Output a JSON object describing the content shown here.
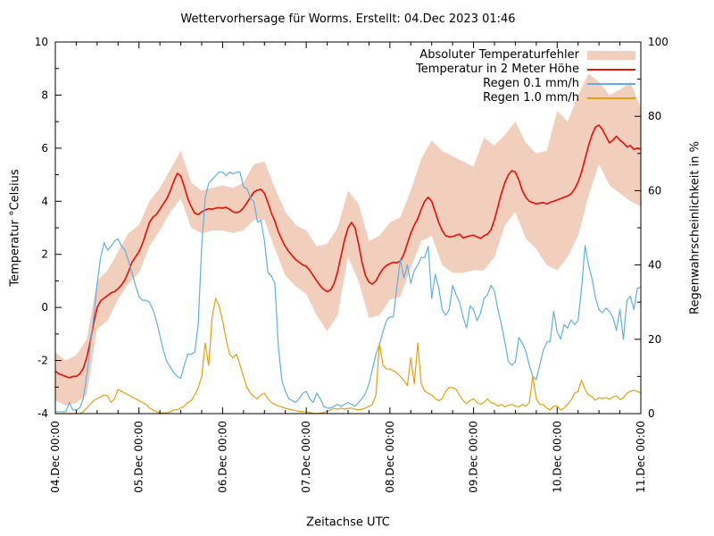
{
  "title": "Wettervorhersage für Worms. Erstellt: 04.Dec 2023 01:46",
  "axes": {
    "x_label": "Zeitachse UTC",
    "y_left_label": "Temperatur °Celsius",
    "y_right_label": "Regenwahrscheinlichkeit in %",
    "y_left_ticks": [
      10,
      8,
      6,
      4,
      2,
      0,
      -2,
      -4
    ],
    "y_left_minor_ticks": [
      9,
      7,
      5,
      3,
      1,
      -1,
      -3
    ],
    "y_right_ticks": [
      100,
      80,
      60,
      40,
      20,
      0
    ],
    "y_right_minor_ticks": [
      90,
      70,
      50,
      30,
      10
    ],
    "x_tick_labels": [
      "04.Dec 00:00",
      "05.Dec 00:00",
      "06.Dec 00:00",
      "07.Dec 00:00",
      "08.Dec 00:00",
      "09.Dec 00:00",
      "10.Dec 00:00",
      "11.Dec 00:00"
    ]
  },
  "chart_data": {
    "type": "line",
    "title": "Wettervorhersage für Worms. Erstellt: 04.Dec 2023 01:46",
    "xlabel": "Zeitachse UTC",
    "x_unit": "hours since 04.Dec 2023 00:00 UTC",
    "x_range_hours": [
      0,
      168
    ],
    "x_tick_labels": [
      "04.Dec 00:00",
      "05.Dec 00:00",
      "06.Dec 00:00",
      "07.Dec 00:00",
      "08.Dec 00:00",
      "09.Dec 00:00",
      "10.Dec 00:00",
      "11.Dec 00:00"
    ],
    "y_left": {
      "label": "Temperatur °Celsius",
      "range": [
        -4,
        10
      ]
    },
    "y_right": {
      "label": "Regenwahrscheinlichkeit in %",
      "range": [
        0,
        100
      ]
    },
    "grid": false,
    "legend_position": "top-right-inside",
    "series": [
      {
        "name": "Absoluter Temperaturfehler",
        "type": "band",
        "axis": "left",
        "color": "#f2cfbd",
        "step_hours": 3,
        "upper": [
          -1.7,
          -2.0,
          -1.8,
          -1.2,
          1.0,
          1.4,
          2.1,
          2.8,
          3.1,
          4.0,
          4.5,
          5.2,
          5.9,
          4.7,
          4.4,
          4.5,
          4.6,
          4.5,
          4.7,
          5.4,
          5.5,
          4.5,
          3.6,
          3.1,
          2.9,
          2.3,
          2.4,
          3.0,
          4.4,
          3.9,
          2.5,
          2.7,
          3.2,
          3.4,
          4.4,
          5.6,
          6.3,
          5.9,
          5.7,
          5.5,
          5.3,
          6.4,
          6.1,
          6.5,
          7.0,
          6.2,
          5.8,
          5.9,
          7.4,
          7.0,
          8.0,
          8.8,
          8.5,
          8.0,
          8.2,
          8.5,
          7.5
        ],
        "lower": [
          -3.5,
          -3.7,
          -3.6,
          -3.3,
          -0.8,
          -0.5,
          0.3,
          0.9,
          1.3,
          2.3,
          2.9,
          3.6,
          4.1,
          3.0,
          2.8,
          2.9,
          2.9,
          2.8,
          2.9,
          3.3,
          3.3,
          2.2,
          1.2,
          0.8,
          0.5,
          -0.3,
          -0.9,
          -0.3,
          1.9,
          1.0,
          -0.4,
          -0.3,
          0.3,
          0.4,
          1.5,
          2.5,
          2.7,
          1.6,
          1.3,
          1.3,
          1.4,
          1.4,
          1.9,
          3.1,
          3.6,
          2.6,
          2.2,
          1.6,
          1.4,
          1.9,
          2.7,
          4.2,
          5.4,
          4.6,
          4.3,
          4.0,
          3.8
        ]
      },
      {
        "name": "Temperatur in 2 Meter Höhe",
        "type": "line",
        "axis": "left",
        "unit": "°C",
        "color": "#e8150d",
        "step_hours": 1,
        "values": [
          -2.4,
          -2.5,
          -2.55,
          -2.6,
          -2.65,
          -2.6,
          -2.6,
          -2.5,
          -2.3,
          -1.9,
          -1.3,
          -0.6,
          0,
          0.25,
          0.35,
          0.45,
          0.55,
          0.6,
          0.7,
          0.85,
          1.05,
          1.35,
          1.7,
          1.9,
          2.1,
          2.4,
          2.8,
          3.2,
          3.4,
          3.5,
          3.7,
          3.9,
          4.1,
          4.4,
          4.75,
          5.05,
          4.95,
          4.55,
          4.1,
          3.8,
          3.55,
          3.5,
          3.6,
          3.67,
          3.72,
          3.7,
          3.74,
          3.76,
          3.74,
          3.77,
          3.7,
          3.6,
          3.57,
          3.62,
          3.75,
          3.95,
          4.15,
          4.35,
          4.42,
          4.45,
          4.3,
          3.95,
          3.55,
          3.25,
          2.85,
          2.55,
          2.3,
          2.1,
          1.95,
          1.8,
          1.7,
          1.6,
          1.55,
          1.4,
          1.2,
          1,
          0.82,
          0.68,
          0.6,
          0.66,
          0.9,
          1.35,
          1.95,
          2.55,
          3,
          3.2,
          3,
          2.4,
          1.7,
          1.2,
          0.95,
          0.88,
          1,
          1.25,
          1.45,
          1.58,
          1.65,
          1.7,
          1.68,
          1.75,
          2,
          2.4,
          2.8,
          3.1,
          3.35,
          3.7,
          4,
          4.15,
          4,
          3.6,
          3.2,
          2.9,
          2.7,
          2.66,
          2.67,
          2.72,
          2.76,
          2.62,
          2.66,
          2.7,
          2.72,
          2.66,
          2.6,
          2.7,
          2.76,
          2.92,
          3.3,
          3.8,
          4.3,
          4.7,
          5,
          5.15,
          5.1,
          4.8,
          4.4,
          4.15,
          4,
          3.95,
          3.9,
          3.93,
          3.95,
          3.9,
          3.96,
          4,
          4.05,
          4.1,
          4.15,
          4.2,
          4.28,
          4.45,
          4.72,
          5.1,
          5.6,
          6.1,
          6.5,
          6.8,
          6.87,
          6.7,
          6.45,
          6.2,
          6.3,
          6.45,
          6.3,
          6.2,
          6.05,
          6.1,
          5.95,
          6,
          5.97
        ]
      },
      {
        "name": "Regen 0.1 mm/h",
        "type": "line",
        "axis": "right",
        "unit": "%",
        "color": "#5fb0e0",
        "step_hours": 1,
        "values": [
          0.5,
          0.5,
          0.5,
          0.5,
          3,
          1,
          1,
          1.5,
          4,
          10,
          18,
          26,
          35,
          42,
          46,
          44,
          45,
          46.5,
          47,
          45,
          44,
          41,
          38,
          34.5,
          31.5,
          30.5,
          30.5,
          30,
          28,
          25,
          21,
          17,
          14,
          12.5,
          11,
          10,
          9.5,
          13,
          16,
          16,
          16.5,
          24,
          45,
          58,
          62,
          63,
          64,
          65,
          65,
          64,
          65,
          64.5,
          65,
          65,
          61,
          60.5,
          58,
          57,
          51.5,
          52,
          46.5,
          38,
          37,
          35,
          18,
          9,
          6,
          4,
          3.5,
          3,
          4,
          5.5,
          6,
          4,
          3,
          5.5,
          4,
          2,
          1.5,
          1.5,
          2,
          2.5,
          2,
          2.5,
          3,
          2.5,
          2,
          3,
          4,
          5.5,
          8,
          12,
          16,
          18.5,
          22,
          25,
          26,
          26,
          34,
          41.5,
          36.5,
          40,
          35,
          38.5,
          40,
          42,
          42,
          45,
          31,
          37.5,
          34,
          28,
          26.5,
          28,
          34.5,
          32,
          30,
          26,
          23,
          29,
          28,
          25,
          27,
          31,
          32,
          34.5,
          33,
          28,
          24,
          19.2,
          14,
          13,
          14,
          20.5,
          19,
          16.8,
          13,
          10,
          9.1,
          13,
          17,
          19.2,
          19.5,
          27.6,
          22,
          20,
          24,
          23,
          25.2,
          24,
          25,
          33.7,
          45.2,
          40,
          36.3,
          31.2,
          28,
          27.2,
          28.4,
          27.5,
          26,
          22.4,
          28,
          20,
          30.4,
          31.6,
          28,
          33.7,
          34
        ]
      },
      {
        "name": "Regen 1.0 mm/h",
        "type": "line",
        "axis": "right",
        "unit": "%",
        "color": "#e5a00e",
        "step_hours": 1,
        "values": [
          0,
          0,
          0,
          0,
          0,
          0,
          0,
          0,
          0.5,
          1.5,
          2.5,
          3.5,
          4,
          4.5,
          5,
          4.8,
          3,
          4,
          6.5,
          6,
          5.5,
          5,
          4.5,
          4,
          3.5,
          3,
          2.5,
          1.5,
          1,
          0.5,
          0.2,
          0.2,
          0.2,
          0.5,
          1,
          1,
          1.5,
          2,
          3,
          3.5,
          5,
          7,
          10,
          19,
          13,
          26,
          31,
          29,
          25,
          20,
          16,
          15,
          16,
          13,
          10,
          7,
          5.5,
          4.5,
          4,
          5,
          5.5,
          4,
          3,
          2.5,
          2,
          1.8,
          1.5,
          1.2,
          1,
          0.8,
          0.6,
          0.5,
          0.5,
          0.3,
          0.1,
          0,
          0.1,
          0.3,
          0.5,
          1,
          1.4,
          1.2,
          1.5,
          1.2,
          1.4,
          1.5,
          1.2,
          1,
          1.2,
          1.5,
          2,
          2.5,
          5,
          19,
          13,
          12,
          12,
          11.5,
          11,
          10,
          9,
          7.5,
          15,
          8,
          19,
          8,
          6,
          5.5,
          5,
          4,
          3.5,
          4,
          6,
          7,
          7,
          6.5,
          5,
          3.5,
          2.7,
          3.5,
          4,
          3,
          2.5,
          3,
          4,
          3,
          2.7,
          2,
          2.5,
          1.8,
          2.2,
          2.5,
          2,
          1.8,
          2.5,
          2,
          3,
          10,
          4,
          2.5,
          2.4,
          1.5,
          1,
          2,
          2,
          1,
          1.5,
          2.5,
          3.6,
          5.5,
          6,
          9,
          6.5,
          5,
          4.5,
          3.6,
          4.3,
          4,
          4.3,
          3.8,
          4.5,
          4.8,
          3.8,
          4.2,
          5.5,
          6,
          6.3,
          6,
          5.5
        ]
      }
    ]
  }
}
